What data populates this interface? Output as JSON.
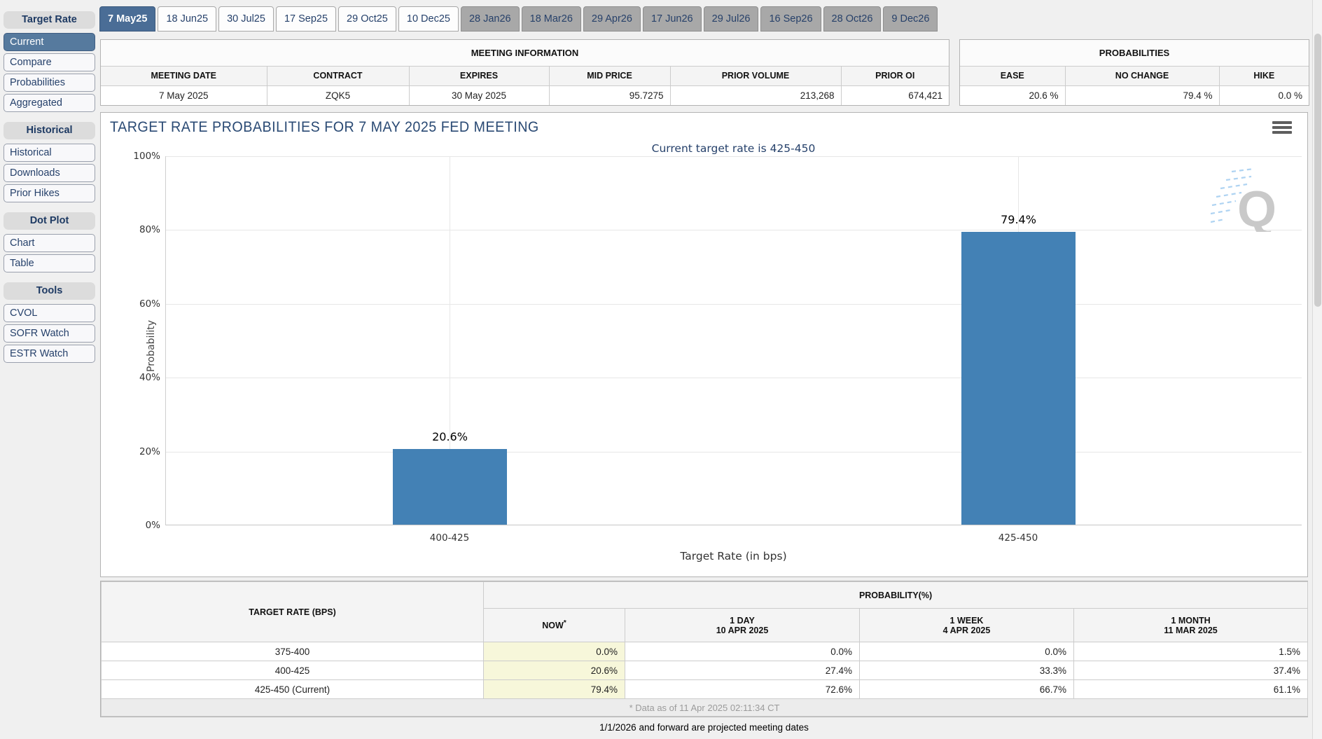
{
  "tabs": [
    {
      "label": "7 May25"
    },
    {
      "label": "18 Jun25"
    },
    {
      "label": "30 Jul25"
    },
    {
      "label": "17 Sep25"
    },
    {
      "label": "29 Oct25"
    },
    {
      "label": "10 Dec25"
    },
    {
      "label": "28 Jan26"
    },
    {
      "label": "18 Mar26"
    },
    {
      "label": "29 Apr26"
    },
    {
      "label": "17 Jun26"
    },
    {
      "label": "29 Jul26"
    },
    {
      "label": "16 Sep26"
    },
    {
      "label": "28 Oct26"
    },
    {
      "label": "9 Dec26"
    }
  ],
  "sidebar": {
    "sections": [
      {
        "header": "Target Rate",
        "items": [
          {
            "label": "Current"
          },
          {
            "label": "Compare"
          },
          {
            "label": "Probabilities"
          },
          {
            "label": "Aggregated"
          }
        ]
      },
      {
        "header": "Historical",
        "items": [
          {
            "label": "Historical"
          },
          {
            "label": "Downloads"
          },
          {
            "label": "Prior Hikes"
          }
        ]
      },
      {
        "header": "Dot Plot",
        "items": [
          {
            "label": "Chart"
          },
          {
            "label": "Table"
          }
        ]
      },
      {
        "header": "Tools",
        "items": [
          {
            "label": "CVOL"
          },
          {
            "label": "SOFR Watch"
          },
          {
            "label": "ESTR Watch"
          }
        ]
      }
    ]
  },
  "meeting_info": {
    "title": "MEETING INFORMATION",
    "columns": [
      "MEETING DATE",
      "CONTRACT",
      "EXPIRES",
      "MID PRICE",
      "PRIOR VOLUME",
      "PRIOR OI"
    ],
    "values": [
      "7 May 2025",
      "ZQK5",
      "30 May 2025",
      "95.7275",
      "213,268",
      "674,421"
    ]
  },
  "probabilities": {
    "title": "PROBABILITIES",
    "columns": [
      "EASE",
      "NO CHANGE",
      "HIKE"
    ],
    "values": [
      "20.6 %",
      "79.4 %",
      "0.0 %"
    ]
  },
  "chart_data": {
    "type": "bar",
    "title": "TARGET RATE PROBABILITIES FOR 7 MAY 2025 FED MEETING",
    "subtitle": "Current target rate is 425-450",
    "categories": [
      "400-425",
      "425-450"
    ],
    "values": [
      20.6,
      79.4
    ],
    "value_labels": [
      "20.6%",
      "79.4%"
    ],
    "xlabel": "Target Rate (in bps)",
    "ylabel": "Probability",
    "ylim": [
      0,
      100
    ],
    "yticks": [
      "0%",
      "20%",
      "40%",
      "60%",
      "80%",
      "100%"
    ],
    "grid": true,
    "legend": "none",
    "bar_color": "#4381b5"
  },
  "watermark": {
    "letter": "Q"
  },
  "history_table": {
    "rate_header": "TARGET RATE (BPS)",
    "group_header": "PROBABILITY(%)",
    "col_headers": [
      {
        "line1": "NOW",
        "sup": "*",
        "line2": ""
      },
      {
        "line1": "1 DAY",
        "line2": "10 APR 2025"
      },
      {
        "line1": "1 WEEK",
        "line2": "4 APR 2025"
      },
      {
        "line1": "1 MONTH",
        "line2": "11 MAR 2025"
      }
    ],
    "rows": [
      {
        "rate": "375-400",
        "now": "0.0%",
        "day1": "0.0%",
        "week1": "0.0%",
        "month1": "1.5%"
      },
      {
        "rate": "400-425",
        "now": "20.6%",
        "day1": "27.4%",
        "week1": "33.3%",
        "month1": "37.4%"
      },
      {
        "rate": "425-450 (Current)",
        "now": "79.4%",
        "day1": "72.6%",
        "week1": "66.7%",
        "month1": "61.1%"
      }
    ],
    "footnote": "* Data as of 11 Apr 2025 02:11:34 CT"
  },
  "footer_note": "1/1/2026 and forward are projected meeting dates",
  "colors": {
    "accent": "#4a6d96",
    "bar": "#4381b5",
    "now_highlight": "#f7f7da",
    "navy_text": "#26416b"
  }
}
